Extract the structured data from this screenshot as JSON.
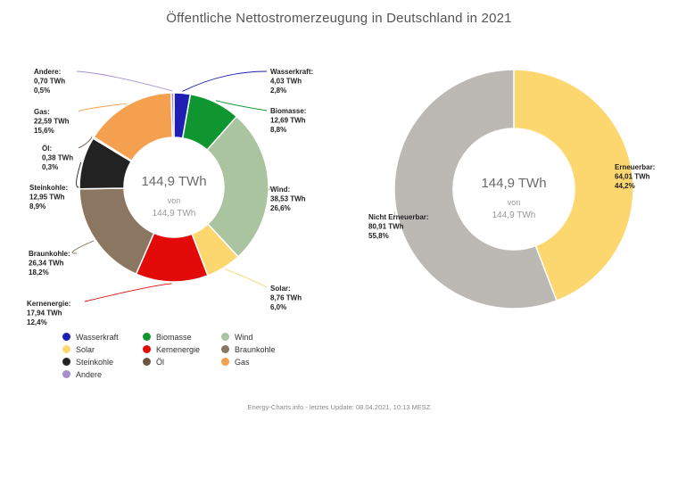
{
  "title": "Öffentliche Nettostromerzeugung in Deutschland in 2021",
  "footer": "Energy-Charts.info - letztes Update: 08.04.2021, 10:13 MESZ",
  "chart_data": [
    {
      "type": "pie",
      "donut": true,
      "center_value": "144,9 TWh",
      "center_of": "von",
      "center_total": "144,9 TWh",
      "legend_placement": "bottom",
      "slices": [
        {
          "name": "Wasserkraft",
          "value": 4.03,
          "value_label": "4,03 TWh",
          "percent_label": "2,8%",
          "color": "#1f1fb4"
        },
        {
          "name": "Biomasse",
          "value": 12.69,
          "value_label": "12,69 TWh",
          "percent_label": "8,8%",
          "color": "#109630"
        },
        {
          "name": "Wind",
          "value": 38.53,
          "value_label": "38,53 TWh",
          "percent_label": "26,6%",
          "color": "#aac49f"
        },
        {
          "name": "Solar",
          "value": 8.76,
          "value_label": "8,76 TWh",
          "percent_label": "6,0%",
          "color": "#fcd66e"
        },
        {
          "name": "Kernenergie",
          "value": 17.94,
          "value_label": "17,94 TWh",
          "percent_label": "12,4%",
          "color": "#e30a0a"
        },
        {
          "name": "Braunkohle",
          "value": 26.34,
          "value_label": "26,34 TWh",
          "percent_label": "18,2%",
          "color": "#8b7661"
        },
        {
          "name": "Steinkohle",
          "value": 12.95,
          "value_label": "12,95 TWh",
          "percent_label": "8,9%",
          "color": "#222222"
        },
        {
          "name": "Öl",
          "value": 0.38,
          "value_label": "0,38 TWh",
          "percent_label": "0,3%",
          "color": "#6b5643"
        },
        {
          "name": "Gas",
          "value": 22.59,
          "value_label": "22,59 TWh",
          "percent_label": "15,6%",
          "color": "#f5a04e"
        },
        {
          "name": "Andere",
          "value": 0.7,
          "value_label": "0,70 TWh",
          "percent_label": "0,5%",
          "color": "#a78fd0"
        }
      ]
    },
    {
      "type": "pie",
      "donut": true,
      "center_value": "144,9 TWh",
      "center_of": "von",
      "center_total": "144,9 TWh",
      "slices": [
        {
          "name": "Erneuerbar",
          "value": 64.01,
          "value_label": "64,01 TWh",
          "percent_label": "44,2%",
          "color": "#fcd66e"
        },
        {
          "name": "Nicht Erneuerbar",
          "value": 80.91,
          "value_label": "80,91 TWh",
          "percent_label": "55,8%",
          "color": "#bcb9b5"
        }
      ]
    }
  ],
  "legend": [
    {
      "label": "Wasserkraft",
      "color": "#1f1fb4"
    },
    {
      "label": "Biomasse",
      "color": "#109630"
    },
    {
      "label": "Wind",
      "color": "#aac49f"
    },
    {
      "label": "Solar",
      "color": "#fcd66e"
    },
    {
      "label": "Kernenergie",
      "color": "#e30a0a"
    },
    {
      "label": "Braunkohle",
      "color": "#8b7661"
    },
    {
      "label": "Steinkohle",
      "color": "#222222"
    },
    {
      "label": "Öl",
      "color": "#6b5643"
    },
    {
      "label": "Gas",
      "color": "#f5a04e"
    },
    {
      "label": "Andere",
      "color": "#a78fd0"
    }
  ]
}
